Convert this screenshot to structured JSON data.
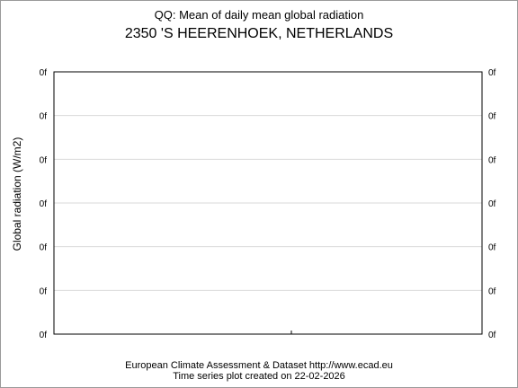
{
  "chart_data": {
    "type": "line",
    "title": "QQ: Mean of daily mean global radiation",
    "subtitle": "2350 'S HEERENHOEK, NETHERLANDS",
    "ylabel": "Global radiation (W/m2)",
    "xlabel": "",
    "y_tick_labels": [
      "0f",
      "0f",
      "0f",
      "0f",
      "0f",
      "0f",
      "0f"
    ],
    "series": [],
    "grid": "horizontal",
    "colors": {
      "grid": "#d9d9d9",
      "axis": "#000000",
      "frame": "#9a9a9a"
    }
  },
  "footer": {
    "line1": "European Climate Assessment & Dataset  http://www.ecad.eu",
    "line2": "Time series plot created on 22-02-2026"
  }
}
